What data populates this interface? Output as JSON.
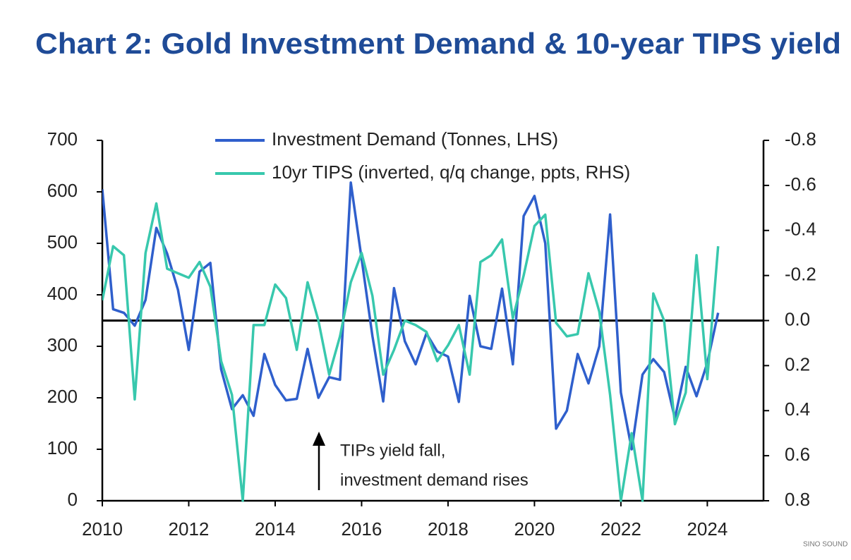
{
  "chart_data": {
    "type": "line",
    "title": "Chart 2: Gold Investment Demand & 10-year TIPS yield",
    "x": [
      2010,
      2010.25,
      2010.5,
      2010.75,
      2011,
      2011.25,
      2011.5,
      2011.75,
      2012,
      2012.25,
      2012.5,
      2012.75,
      2013,
      2013.25,
      2013.5,
      2013.75,
      2014,
      2014.25,
      2014.5,
      2014.75,
      2015,
      2015.25,
      2015.5,
      2015.75,
      2016,
      2016.25,
      2016.5,
      2016.75,
      2017,
      2017.25,
      2017.5,
      2017.75,
      2018,
      2018.25,
      2018.5,
      2018.75,
      2019,
      2019.25,
      2019.5,
      2019.75,
      2020,
      2020.25,
      2020.5,
      2020.75,
      2021,
      2021.25,
      2021.5,
      2021.75,
      2022,
      2022.25,
      2022.5,
      2022.75,
      2023,
      2023.25,
      2023.5,
      2023.75,
      2024,
      2024.25
    ],
    "series": [
      {
        "name": "Investment Demand (Tonnes, LHS)",
        "color": "#2f5fcc",
        "axis": "y",
        "values": [
          605,
          372,
          365,
          340,
          390,
          530,
          480,
          410,
          293,
          445,
          462,
          255,
          178,
          205,
          165,
          285,
          225,
          195,
          198,
          295,
          200,
          240,
          235,
          618,
          470,
          320,
          193,
          413,
          310,
          265,
          325,
          290,
          280,
          192,
          398,
          300,
          295,
          412,
          265,
          553,
          592,
          500,
          140,
          175,
          285,
          228,
          300,
          556,
          210,
          100,
          245,
          275,
          250,
          160,
          260,
          203,
          268,
          365
        ]
      },
      {
        "name": "10yr TIPS (inverted, q/q change, ppts, RHS)",
        "color": "#38c8ad",
        "axis": "y2",
        "values": [
          -0.09,
          -0.33,
          -0.29,
          0.35,
          -0.3,
          -0.52,
          -0.23,
          -0.21,
          -0.19,
          -0.26,
          -0.15,
          0.18,
          0.33,
          0.8,
          0.02,
          0.02,
          -0.16,
          -0.1,
          0.13,
          -0.17,
          0,
          0.24,
          0.07,
          -0.17,
          -0.3,
          -0.11,
          0.24,
          0.13,
          0,
          0.02,
          0.05,
          0.18,
          0.11,
          0.02,
          0.24,
          -0.26,
          -0.29,
          -0.36,
          -0.01,
          -0.2,
          -0.42,
          -0.47,
          0.01,
          0.07,
          0.06,
          -0.21,
          -0.04,
          0.33,
          0.8,
          0.5,
          0.8,
          -0.12,
          0,
          0.46,
          0.32,
          -0.29,
          0.26,
          -0.33
        ]
      }
    ],
    "xlim": [
      2010,
      2025.3
    ],
    "xticks": [
      2010,
      2012,
      2014,
      2016,
      2018,
      2020,
      2022,
      2024
    ],
    "ylim": [
      0,
      700
    ],
    "yticks": [
      0,
      100,
      200,
      300,
      400,
      500,
      600,
      700
    ],
    "y2lim": [
      0.8,
      -0.8
    ],
    "y2ticks": [
      -0.8,
      -0.6,
      -0.4,
      -0.2,
      {
        "value": 0,
        "label": "0.0"
      },
      0.2,
      0.4,
      0.6,
      0.8
    ],
    "y2_reference_line": 0,
    "annotation": [
      "TIPs yield fall,",
      "investment demand rises"
    ],
    "watermark": "SINO SOUND"
  }
}
